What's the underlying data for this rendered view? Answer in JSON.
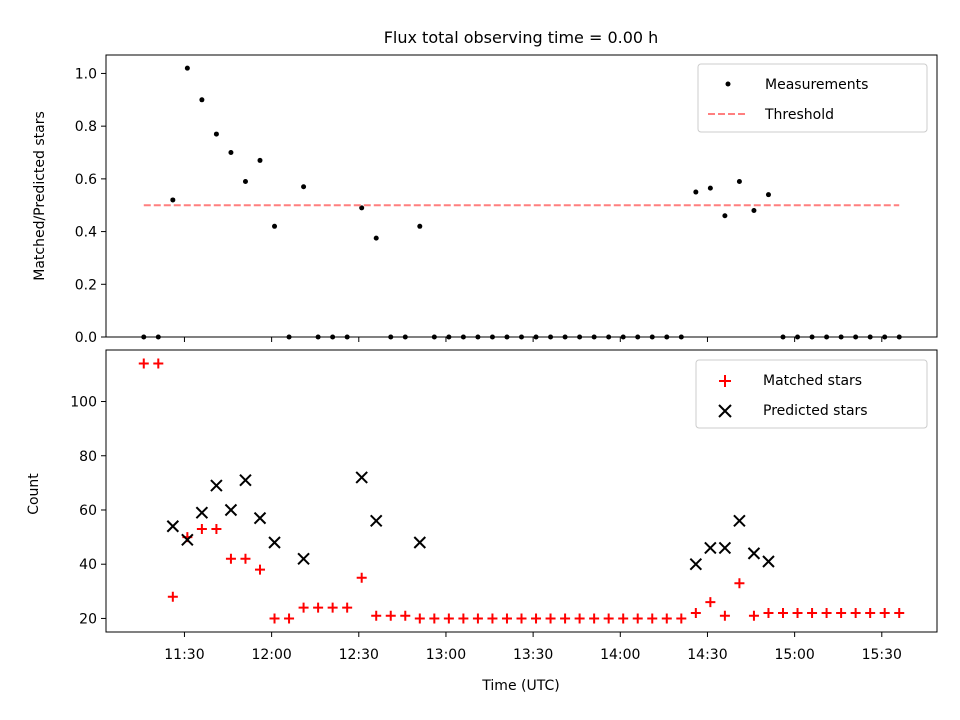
{
  "chart_data": [
    {
      "type": "scatter",
      "title": "Flux total observing time = 0.00 h",
      "ylabel": "Matched/Predicted stars",
      "xlabel": "",
      "ylim": [
        0,
        1.07
      ],
      "yticks": [
        "0.0",
        "0.2",
        "0.4",
        "0.6",
        "0.8",
        "1.0"
      ],
      "grid": false,
      "legend_position": "top-right",
      "series": [
        {
          "name": "Measurements",
          "marker": "dot",
          "color": "#000000",
          "x": [
            "11:16",
            "11:21",
            "11:26",
            "11:31",
            "11:36",
            "11:41",
            "11:46",
            "11:51",
            "11:56",
            "12:01",
            "12:06",
            "12:11",
            "12:16",
            "12:21",
            "12:26",
            "12:31",
            "12:36",
            "12:41",
            "12:46",
            "12:51",
            "12:56",
            "13:01",
            "13:06",
            "13:11",
            "13:16",
            "13:21",
            "13:26",
            "13:31",
            "13:36",
            "13:41",
            "13:46",
            "13:51",
            "13:56",
            "14:01",
            "14:06",
            "14:11",
            "14:16",
            "14:21",
            "14:26",
            "14:31",
            "14:36",
            "14:41",
            "14:46",
            "14:51",
            "14:56",
            "15:01",
            "15:06",
            "15:11",
            "15:16",
            "15:21",
            "15:26",
            "15:31",
            "15:36"
          ],
          "y": [
            0,
            0,
            0.52,
            1.02,
            0.9,
            0.77,
            0.7,
            0.59,
            0.67,
            0.42,
            0,
            0.57,
            0,
            0,
            0,
            0.49,
            0.375,
            0,
            0,
            0.42,
            0,
            0,
            0,
            0,
            0,
            0,
            0,
            0,
            0,
            0,
            0,
            0,
            0,
            0,
            0,
            0,
            0,
            0,
            0.55,
            0.565,
            0.46,
            0.59,
            0.48,
            0.54,
            0,
            0,
            0,
            0,
            0,
            0,
            0,
            0,
            0
          ]
        },
        {
          "name": "Threshold",
          "style": "dashed-line",
          "color": "#ff7f7f",
          "x": [
            "11:16",
            "15:36"
          ],
          "y": [
            0.5,
            0.5
          ]
        }
      ]
    },
    {
      "type": "scatter",
      "title": "",
      "ylabel": "Count",
      "xlabel": "Time (UTC)",
      "ylim": [
        15,
        119
      ],
      "yticks": [
        "20",
        "40",
        "60",
        "80",
        "100"
      ],
      "xticks": [
        "11:30",
        "12:00",
        "12:30",
        "13:00",
        "13:30",
        "14:00",
        "14:30",
        "15:00",
        "15:30"
      ],
      "grid": false,
      "legend_position": "top-right",
      "series": [
        {
          "name": "Matched stars",
          "marker": "+",
          "color": "#ff0000",
          "x": [
            "11:16",
            "11:21",
            "11:26",
            "11:31",
            "11:36",
            "11:41",
            "11:46",
            "11:51",
            "11:56",
            "12:01",
            "12:06",
            "12:11",
            "12:16",
            "12:21",
            "12:26",
            "12:31",
            "12:36",
            "12:41",
            "12:46",
            "12:51",
            "12:56",
            "13:01",
            "13:06",
            "13:11",
            "13:16",
            "13:21",
            "13:26",
            "13:31",
            "13:36",
            "13:41",
            "13:46",
            "13:51",
            "13:56",
            "14:01",
            "14:06",
            "14:11",
            "14:16",
            "14:21",
            "14:26",
            "14:31",
            "14:36",
            "14:41",
            "14:46",
            "14:51",
            "14:56",
            "15:01",
            "15:06",
            "15:11",
            "15:16",
            "15:21",
            "15:26",
            "15:31",
            "15:36"
          ],
          "y": [
            114,
            114,
            28,
            50,
            53,
            53,
            42,
            42,
            38,
            20,
            20,
            24,
            24,
            24,
            24,
            35,
            21,
            21,
            21,
            20,
            20,
            20,
            20,
            20,
            20,
            20,
            20,
            20,
            20,
            20,
            20,
            20,
            20,
            20,
            20,
            20,
            20,
            20,
            22,
            26,
            21,
            33,
            21,
            22,
            22,
            22,
            22,
            22,
            22,
            22,
            22,
            22,
            22
          ]
        },
        {
          "name": "Predicted stars",
          "marker": "x",
          "color": "#000000",
          "x": [
            "11:26",
            "11:31",
            "11:36",
            "11:41",
            "11:46",
            "11:51",
            "11:56",
            "12:01",
            "12:11",
            "12:31",
            "12:36",
            "12:51",
            "14:26",
            "14:31",
            "14:36",
            "14:41",
            "14:46",
            "14:51"
          ],
          "y": [
            54,
            49,
            59,
            69,
            60,
            71,
            57,
            48,
            42,
            72,
            56,
            48,
            40,
            46,
            46,
            56,
            44,
            41
          ]
        }
      ]
    }
  ]
}
